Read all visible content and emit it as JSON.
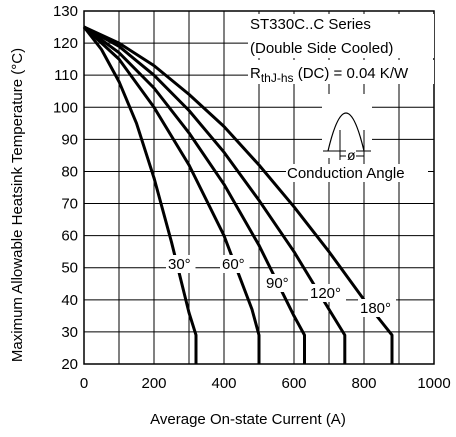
{
  "chart_data": {
    "type": "line",
    "title_lines": [
      "ST330C..C Series",
      "(Double Side Cooled)"
    ],
    "rth_label": {
      "base": "R",
      "sub": "thJ-hs",
      "rest": " (DC) = 0.04 K/W"
    },
    "inset_label": "Conduction Angle",
    "inset_symbol": "ø",
    "xlabel": "Average On-state Current (A)",
    "ylabel": "Maximum Allowable Heatsink Temperature (°C)",
    "xlim": [
      0,
      1000
    ],
    "ylim": [
      20,
      130
    ],
    "xticks": [
      0,
      200,
      400,
      600,
      800,
      1000
    ],
    "yticks": [
      20,
      30,
      40,
      50,
      60,
      70,
      80,
      90,
      100,
      110,
      120,
      130
    ],
    "grid": true,
    "series": [
      {
        "name": "30°",
        "points": [
          [
            0,
            125
          ],
          [
            50,
            118
          ],
          [
            100,
            108
          ],
          [
            150,
            95
          ],
          [
            200,
            78
          ],
          [
            250,
            58
          ],
          [
            300,
            36
          ],
          [
            320,
            29
          ],
          [
            320,
            20
          ]
        ]
      },
      {
        "name": "60°",
        "points": [
          [
            0,
            125
          ],
          [
            100,
            115
          ],
          [
            200,
            100
          ],
          [
            300,
            82
          ],
          [
            400,
            60
          ],
          [
            480,
            37
          ],
          [
            500,
            29
          ],
          [
            500,
            20
          ]
        ]
      },
      {
        "name": "90°",
        "points": [
          [
            0,
            125
          ],
          [
            100,
            117
          ],
          [
            200,
            106
          ],
          [
            300,
            92
          ],
          [
            400,
            76
          ],
          [
            500,
            57
          ],
          [
            600,
            35
          ],
          [
            630,
            29
          ],
          [
            630,
            20
          ]
        ]
      },
      {
        "name": "120°",
        "points": [
          [
            0,
            125
          ],
          [
            100,
            119
          ],
          [
            200,
            110
          ],
          [
            300,
            99
          ],
          [
            400,
            86
          ],
          [
            500,
            71
          ],
          [
            600,
            55
          ],
          [
            700,
            37
          ],
          [
            745,
            29
          ],
          [
            745,
            20
          ]
        ]
      },
      {
        "name": "180°",
        "points": [
          [
            0,
            125
          ],
          [
            100,
            120
          ],
          [
            200,
            113
          ],
          [
            300,
            104
          ],
          [
            400,
            94
          ],
          [
            500,
            82
          ],
          [
            600,
            69
          ],
          [
            700,
            55
          ],
          [
            800,
            40
          ],
          [
            880,
            29
          ],
          [
            880,
            20
          ]
        ]
      }
    ]
  }
}
